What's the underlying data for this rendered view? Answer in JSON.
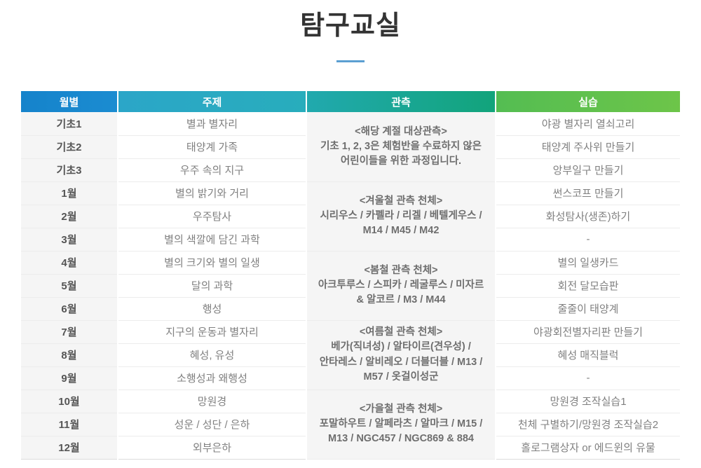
{
  "page": {
    "title": "탐구교실"
  },
  "colors": {
    "title_underline": "#5b9fd2",
    "header_gradients": {
      "month": [
        "#1583cb",
        "#1b8cd1"
      ],
      "topic": [
        "#2ba6c8",
        "#28adbc"
      ],
      "observation": [
        "#21a9ae",
        "#12a47b"
      ],
      "practice": [
        "#54bd52",
        "#6dc549"
      ]
    },
    "row_shade": "#f5f5f5"
  },
  "table": {
    "headers": [
      "월별",
      "주제",
      "관측",
      "실습"
    ],
    "groups": [
      {
        "observation": [
          "<해당 계절 대상관측>",
          "기초 1, 2, 3은 체험반을 수료하지 않은",
          "어린이들을 위한 과정입니다."
        ],
        "rows": [
          {
            "month": "기초1",
            "topic": "별과 별자리",
            "practice": "야광 별자리 열쇠고리"
          },
          {
            "month": "기초2",
            "topic": "태양계 가족",
            "practice": "태양계 주사위 만들기"
          },
          {
            "month": "기초3",
            "topic": "우주 속의 지구",
            "practice": "앙부일구 만들기"
          }
        ]
      },
      {
        "observation": [
          "<겨울철 관측 천체>",
          "시리우스 / 카펠라 / 리겔 / 베텔게우스 /",
          "M14 / M45 / M42"
        ],
        "rows": [
          {
            "month": "1월",
            "topic": "별의 밝기와 거리",
            "practice": "썬스코프 만들기"
          },
          {
            "month": "2월",
            "topic": "우주탐사",
            "practice": "화성탐사(생존)하기"
          },
          {
            "month": "3월",
            "topic": "별의 색깔에 담긴 과학",
            "practice": "-"
          }
        ]
      },
      {
        "observation": [
          "<봄철 관측 천체>",
          "아크투루스 / 스피카 / 레굴루스 / 미자르",
          "& 알코르 / M3 / M44"
        ],
        "rows": [
          {
            "month": "4월",
            "topic": "별의 크기와 별의 일생",
            "practice": "별의 일생카드"
          },
          {
            "month": "5월",
            "topic": "달의 과학",
            "practice": "회전 달모습판"
          },
          {
            "month": "6월",
            "topic": "행성",
            "practice": "줄줄이 태양계"
          }
        ]
      },
      {
        "observation": [
          "<여름철 관측 천체>",
          "베가(직녀성) / 알타이르(견우성) /",
          "안타레스 / 알비레오 / 더블더블 / M13 /",
          "M57 / 옷걸이성군"
        ],
        "rows": [
          {
            "month": "7월",
            "topic": "지구의 운동과 별자리",
            "practice": "야광회전별자리판 만들기"
          },
          {
            "month": "8월",
            "topic": "혜성, 유성",
            "practice": "혜성 매직블럭"
          },
          {
            "month": "9월",
            "topic": "소행성과 왜행성",
            "practice": "-"
          }
        ]
      },
      {
        "observation": [
          "<가을철 관측 천체>",
          "포말하우트 / 알페라츠 / 알마크 / M15 /",
          "M13 / NGC457 / NGC869 & 884"
        ],
        "rows": [
          {
            "month": "10월",
            "topic": "망원경",
            "practice": "망원경 조작실습1"
          },
          {
            "month": "11월",
            "topic": "성운 / 성단 / 은하",
            "practice": "천체 구별하기/망원경 조작실습2"
          },
          {
            "month": "12월",
            "topic": "외부은하",
            "practice": "홀로그램상자 or 에드윈의 유물"
          }
        ]
      }
    ]
  }
}
